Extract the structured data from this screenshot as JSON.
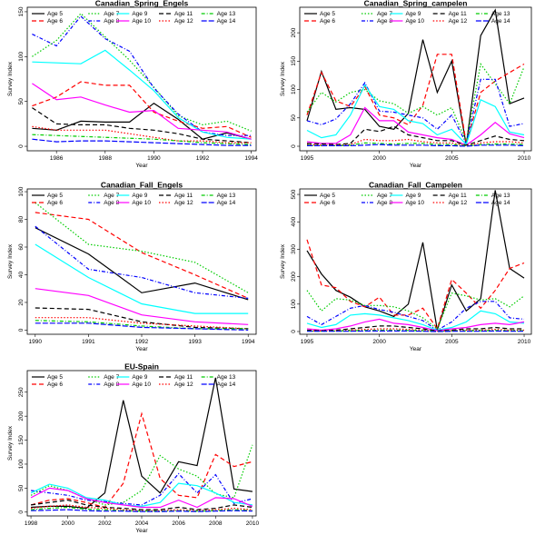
{
  "series_styles": [
    {
      "name": "Age 5",
      "color": "#000000",
      "dash": ""
    },
    {
      "name": "Age 6",
      "color": "#ff0000",
      "dash": "5,3"
    },
    {
      "name": "Age 7",
      "color": "#00cc00",
      "dash": "1.5,2"
    },
    {
      "name": "Age 8",
      "color": "#0000ff",
      "dash": "4,2,1,2"
    },
    {
      "name": "Age 9",
      "color": "#00ffff",
      "dash": ""
    },
    {
      "name": "Age 10",
      "color": "#ff00ff",
      "dash": ""
    },
    {
      "name": "Age 11",
      "color": "#000000",
      "dash": "5,3"
    },
    {
      "name": "Age 12",
      "color": "#ff0000",
      "dash": "1.5,2"
    },
    {
      "name": "Age 13",
      "color": "#00cc00",
      "dash": "4,2,1,2"
    },
    {
      "name": "Age 14",
      "color": "#0000ff",
      "dash": "6,2"
    }
  ],
  "chart_data": [
    {
      "type": "line",
      "title": "Canadian_Spring_Engels",
      "xlabel": "Year",
      "ylabel": "Survey Index",
      "xlim": [
        1984.8,
        1994.2
      ],
      "ylim": [
        -5,
        155
      ],
      "xticks": [
        1986,
        1988,
        1990,
        1992,
        1994
      ],
      "yticks": [
        0,
        50,
        100,
        150
      ],
      "x": [
        1985,
        1986,
        1987,
        1988,
        1989,
        1990,
        1991,
        1992,
        1993,
        1994
      ],
      "series": [
        {
          "name": "Age 5",
          "values": [
            20,
            18,
            28,
            27,
            27,
            48,
            30,
            8,
            15,
            8
          ]
        },
        {
          "name": "Age 6",
          "values": [
            45,
            55,
            72,
            68,
            68,
            38,
            28,
            20,
            22,
            10
          ]
        },
        {
          "name": "Age 7",
          "values": [
            100,
            118,
            148,
            122,
            96,
            66,
            34,
            24,
            28,
            17
          ]
        },
        {
          "name": "Age 8",
          "values": [
            125,
            112,
            145,
            120,
            106,
            65,
            36,
            16,
            12,
            12
          ]
        },
        {
          "name": "Age 9",
          "values": [
            94,
            93,
            92,
            107,
            85,
            62,
            32,
            16,
            10,
            8
          ]
        },
        {
          "name": "Age 10",
          "values": [
            70,
            52,
            55,
            46,
            38,
            40,
            20,
            18,
            16,
            8
          ]
        },
        {
          "name": "Age 11",
          "values": [
            43,
            25,
            24,
            24,
            20,
            18,
            14,
            8,
            6,
            4
          ]
        },
        {
          "name": "Age 12",
          "values": [
            22,
            18,
            18,
            18,
            14,
            10,
            6,
            6,
            4,
            4
          ]
        },
        {
          "name": "Age 13",
          "values": [
            13,
            12,
            11,
            10,
            9,
            8,
            6,
            4,
            3,
            2
          ]
        },
        {
          "name": "Age 14",
          "values": [
            8,
            5,
            6,
            6,
            5,
            4,
            3,
            2,
            1,
            1
          ]
        }
      ]
    },
    {
      "type": "line",
      "title": "Canadian_Spring_campelen",
      "xlabel": "Year",
      "ylabel": "Survey Index",
      "xlim": [
        1994.5,
        2010.5
      ],
      "ylim": [
        -8,
        245
      ],
      "xticks": [
        1995,
        2000,
        2005,
        2010
      ],
      "yticks": [
        0,
        50,
        100,
        150,
        200
      ],
      "x": [
        1995,
        1996,
        1997,
        1998,
        1999,
        2000,
        2001,
        2002,
        2003,
        2004,
        2005,
        2006,
        2007,
        2008,
        2009,
        2010
      ],
      "series": [
        {
          "name": "Age 5",
          "values": [
            45,
            132,
            65,
            68,
            65,
            35,
            30,
            58,
            188,
            95,
            150,
            2,
            195,
            240,
            75,
            85
          ]
        },
        {
          "name": "Age 6",
          "values": [
            55,
            130,
            80,
            70,
            105,
            55,
            50,
            38,
            72,
            162,
            162,
            5,
            95,
            115,
            130,
            145
          ]
        },
        {
          "name": "Age 7",
          "values": [
            60,
            95,
            78,
            95,
            100,
            80,
            75,
            58,
            70,
            55,
            68,
            8,
            145,
            110,
            75,
            140
          ]
        },
        {
          "name": "Age 8",
          "values": [
            45,
            38,
            48,
            75,
            112,
            62,
            60,
            55,
            50,
            30,
            55,
            5,
            118,
            118,
            35,
            40
          ]
        },
        {
          "name": "Age 9",
          "values": [
            28,
            15,
            20,
            55,
            108,
            70,
            65,
            45,
            40,
            20,
            30,
            3,
            82,
            70,
            25,
            20
          ]
        },
        {
          "name": "Age 10",
          "values": [
            8,
            5,
            5,
            20,
            68,
            45,
            45,
            25,
            20,
            15,
            12,
            2,
            20,
            42,
            22,
            15
          ]
        },
        {
          "name": "Age 11",
          "values": [
            5,
            4,
            3,
            5,
            30,
            26,
            35,
            20,
            15,
            10,
            10,
            2,
            10,
            18,
            12,
            10
          ]
        },
        {
          "name": "Age 12",
          "values": [
            3,
            2,
            2,
            3,
            12,
            10,
            10,
            12,
            8,
            6,
            6,
            1,
            6,
            8,
            8,
            6
          ]
        },
        {
          "name": "Age 13",
          "values": [
            2,
            1,
            1,
            2,
            6,
            5,
            4,
            5,
            5,
            3,
            3,
            1,
            3,
            4,
            4,
            3
          ]
        },
        {
          "name": "Age 14",
          "values": [
            1,
            1,
            1,
            1,
            2,
            3,
            2,
            2,
            2,
            1,
            1,
            0,
            2,
            2,
            2,
            1
          ]
        }
      ]
    },
    {
      "type": "line",
      "title": "Canadian_Fall_Engels",
      "xlabel": "Year",
      "ylabel": "Survey Index",
      "xlim": [
        1989.85,
        1994.15
      ],
      "ylim": [
        -3,
        102
      ],
      "xticks": [
        1990,
        1991,
        1992,
        1993,
        1994
      ],
      "yticks": [
        0,
        20,
        40,
        60,
        80,
        100
      ],
      "x": [
        1990,
        1991,
        1992,
        1993,
        1994
      ],
      "series": [
        {
          "name": "Age 5",
          "values": [
            74,
            55,
            27,
            34,
            22
          ]
        },
        {
          "name": "Age 6",
          "values": [
            85,
            80,
            56,
            40,
            23
          ]
        },
        {
          "name": "Age 7",
          "values": [
            92,
            62,
            57,
            49,
            27
          ]
        },
        {
          "name": "Age 8",
          "values": [
            75,
            44,
            38,
            27,
            23
          ]
        },
        {
          "name": "Age 9",
          "values": [
            62,
            38,
            19,
            12,
            12
          ]
        },
        {
          "name": "Age 10",
          "values": [
            30,
            25,
            11,
            6,
            4
          ]
        },
        {
          "name": "Age 11",
          "values": [
            16,
            15,
            6,
            2,
            1
          ]
        },
        {
          "name": "Age 12",
          "values": [
            9,
            9,
            5,
            3,
            1
          ]
        },
        {
          "name": "Age 13",
          "values": [
            7,
            6,
            3,
            1,
            1
          ]
        },
        {
          "name": "Age 14",
          "values": [
            5,
            5,
            2,
            1,
            0
          ]
        }
      ]
    },
    {
      "type": "line",
      "title": "Canadian_Fall_Campelen",
      "xlabel": "Year",
      "ylabel": "Survey Index",
      "xlim": [
        1994.5,
        2010.5
      ],
      "ylim": [
        -10,
        520
      ],
      "xticks": [
        1995,
        2000,
        2005,
        2010
      ],
      "yticks": [
        0,
        100,
        200,
        300,
        400,
        500
      ],
      "x": [
        1995,
        1996,
        1997,
        1998,
        1999,
        2000,
        2001,
        2002,
        2003,
        2004,
        2005,
        2006,
        2007,
        2008,
        2009,
        2010
      ],
      "series": [
        {
          "name": "Age 5",
          "values": [
            295,
            210,
            150,
            125,
            90,
            75,
            55,
            100,
            325,
            5,
            170,
            75,
            120,
            515,
            230,
            195
          ]
        },
        {
          "name": "Age 6",
          "values": [
            335,
            170,
            160,
            110,
            90,
            125,
            60,
            60,
            85,
            10,
            190,
            140,
            85,
            150,
            230,
            250
          ]
        },
        {
          "name": "Age 7",
          "values": [
            150,
            75,
            120,
            115,
            95,
            95,
            90,
            75,
            50,
            10,
            140,
            130,
            115,
            120,
            90,
            130
          ]
        },
        {
          "name": "Age 8",
          "values": [
            55,
            25,
            55,
            85,
            95,
            80,
            70,
            55,
            40,
            5,
            35,
            85,
            110,
            110,
            50,
            45
          ]
        },
        {
          "name": "Age 9",
          "values": [
            30,
            15,
            25,
            60,
            65,
            60,
            50,
            40,
            25,
            5,
            15,
            35,
            75,
            65,
            35,
            30
          ]
        },
        {
          "name": "Age 10",
          "values": [
            10,
            5,
            10,
            20,
            35,
            45,
            30,
            25,
            15,
            3,
            10,
            15,
            25,
            30,
            25,
            35
          ]
        },
        {
          "name": "Age 11",
          "values": [
            5,
            3,
            5,
            10,
            15,
            20,
            20,
            15,
            10,
            2,
            5,
            10,
            10,
            15,
            10,
            10
          ]
        },
        {
          "name": "Age 12",
          "values": [
            3,
            2,
            3,
            5,
            8,
            10,
            10,
            8,
            5,
            1,
            3,
            5,
            5,
            8,
            5,
            5
          ]
        },
        {
          "name": "Age 13",
          "values": [
            2,
            1,
            2,
            3,
            4,
            5,
            5,
            4,
            3,
            1,
            2,
            3,
            3,
            4,
            3,
            3
          ]
        },
        {
          "name": "Age 14",
          "values": [
            1,
            1,
            1,
            1,
            2,
            2,
            2,
            2,
            1,
            0,
            1,
            1,
            1,
            2,
            1,
            1
          ]
        }
      ]
    },
    {
      "type": "line",
      "title": "EU-Spain",
      "xlabel": "Year",
      "ylabel": "Survey Index",
      "xlim": [
        1997.8,
        2010.2
      ],
      "ylim": [
        -8,
        295
      ],
      "xticks": [
        1998,
        2000,
        2002,
        2004,
        2006,
        2008,
        2010
      ],
      "yticks": [
        0,
        50,
        100,
        150,
        200,
        250
      ],
      "x": [
        1998,
        1999,
        2000,
        2001,
        2002,
        2003,
        2004,
        2005,
        2006,
        2007,
        2008,
        2009,
        2010
      ],
      "series": [
        {
          "name": "Age 5",
          "values": [
            10,
            12,
            12,
            8,
            40,
            233,
            75,
            40,
            105,
            97,
            280,
            48,
            43
          ]
        },
        {
          "name": "Age 6",
          "values": [
            15,
            25,
            28,
            20,
            10,
            60,
            205,
            70,
            35,
            30,
            120,
            95,
            105
          ]
        },
        {
          "name": "Age 7",
          "values": [
            35,
            55,
            45,
            28,
            15,
            20,
            45,
            118,
            90,
            75,
            38,
            30,
            140
          ]
        },
        {
          "name": "Age 8",
          "values": [
            45,
            40,
            35,
            25,
            22,
            18,
            15,
            35,
            80,
            40,
            78,
            18,
            28
          ]
        },
        {
          "name": "Age 9",
          "values": [
            40,
            58,
            50,
            30,
            25,
            15,
            12,
            20,
            60,
            55,
            40,
            20,
            15
          ]
        },
        {
          "name": "Age 10",
          "values": [
            30,
            50,
            45,
            28,
            20,
            15,
            10,
            10,
            25,
            10,
            30,
            28,
            12
          ]
        },
        {
          "name": "Age 11",
          "values": [
            15,
            20,
            25,
            15,
            10,
            8,
            5,
            5,
            10,
            5,
            8,
            15,
            10
          ]
        },
        {
          "name": "Age 12",
          "values": [
            8,
            12,
            15,
            10,
            8,
            5,
            3,
            3,
            5,
            3,
            5,
            8,
            5
          ]
        },
        {
          "name": "Age 13",
          "values": [
            5,
            8,
            10,
            6,
            5,
            3,
            2,
            2,
            3,
            2,
            3,
            5,
            3
          ]
        },
        {
          "name": "Age 14",
          "values": [
            3,
            4,
            5,
            3,
            2,
            2,
            1,
            1,
            2,
            1,
            2,
            3,
            2
          ]
        }
      ]
    }
  ]
}
